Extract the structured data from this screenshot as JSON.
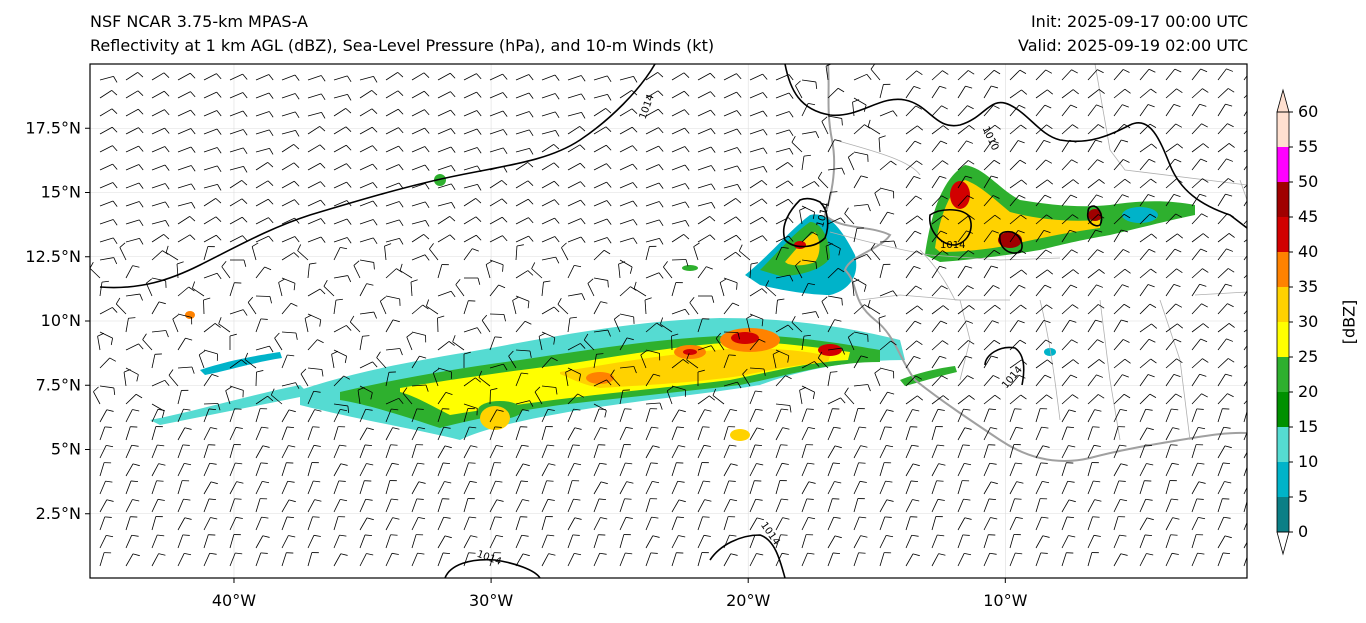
{
  "header": {
    "left_line1": "NSF NCAR 3.75-km MPAS-A",
    "left_line2": "Reflectivity at 1 km AGL (dBZ), Sea-Level Pressure (hPa), and 10-m Winds (kt)",
    "right_line1": "Init: 2025-09-17 00:00 UTC",
    "right_line2": "Valid: 2025-09-19 02:00 UTC"
  },
  "axes": {
    "lat_labels": [
      "17.5°N",
      "15°N",
      "12.5°N",
      "10°N",
      "7.5°N",
      "5°N",
      "2.5°N"
    ],
    "lat_values": [
      17.5,
      15,
      12.5,
      10,
      7.5,
      5,
      2.5
    ],
    "lon_labels": [
      "40°W",
      "30°W",
      "20°W",
      "10°W"
    ],
    "lon_values": [
      -40,
      -30,
      -20,
      -10
    ],
    "lon_range": [
      -45.6,
      -0.6
    ],
    "lat_range": [
      0,
      20
    ]
  },
  "colorbar": {
    "unit_label": "[dBZ]",
    "ticks": [
      "0",
      "5",
      "10",
      "15",
      "20",
      "25",
      "30",
      "35",
      "40",
      "45",
      "50",
      "55",
      "60"
    ],
    "colors": [
      "#ffffff",
      "#0b7f86",
      "#00b3c9",
      "#55dbd2",
      "#009000",
      "#2eb02e",
      "#ffff00",
      "#ffd200",
      "#ff8200",
      "#d20000",
      "#a00000",
      "#ff00ff",
      "#ffe0d0"
    ]
  },
  "isobars": {
    "labels": [
      "1014",
      "1010",
      "1014",
      "1014",
      "1014",
      "1014",
      "1014"
    ]
  },
  "colors": {
    "coastline": "#a0a0a0",
    "isobar": "#000000",
    "barb": "#000000"
  }
}
